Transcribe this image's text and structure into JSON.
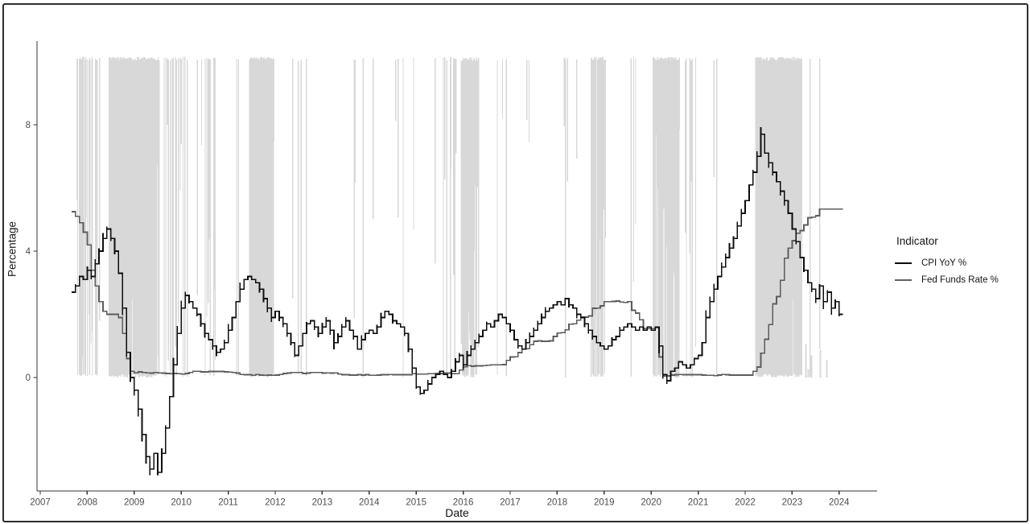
{
  "figure": {
    "background": "#ffffff",
    "border_color": "#2e2e2e"
  },
  "chart_data": {
    "type": "line",
    "xlabel": "Date",
    "ylabel": "Percentage",
    "x_ticks": [
      2007,
      2008,
      2009,
      2010,
      2011,
      2012,
      2013,
      2014,
      2015,
      2016,
      2017,
      2018,
      2019,
      2020,
      2021,
      2022,
      2023,
      2024
    ],
    "y_ticks": [
      0,
      4,
      8
    ],
    "ylim": [
      -3.2,
      10.2
    ],
    "xlim": [
      2006.93,
      2024.8
    ],
    "grid": "off",
    "tick_label_color": "#4d4d4d",
    "axis_line_color": "#333333",
    "legend": {
      "title": "Indicator",
      "position": "right",
      "entries": [
        {
          "label": "CPI YoY %",
          "color": "#0d0d0d"
        },
        {
          "label": "Fed Funds Rate %",
          "color": "#616161"
        }
      ]
    },
    "start_year": 2007,
    "start_month": 9,
    "series": [
      {
        "name": "Fed Funds Rate %",
        "color": "#5c5c5c",
        "width": 1.7,
        "overshoot": false,
        "values": [
          5.25,
          5.1,
          4.9,
          4.6,
          4.2,
          3.4,
          2.9,
          2.4,
          2.1,
          2.0,
          2.0,
          2.0,
          1.9,
          1.4,
          0.6,
          0.2,
          0.15,
          0.18,
          0.16,
          0.15,
          0.14,
          0.16,
          0.15,
          0.14,
          0.13,
          0.12,
          0.13,
          0.12,
          0.11,
          0.13,
          0.16,
          0.2,
          0.2,
          0.18,
          0.18,
          0.19,
          0.19,
          0.19,
          0.19,
          0.18,
          0.17,
          0.16,
          0.14,
          0.1,
          0.09,
          0.09,
          0.07,
          0.1,
          0.08,
          0.07,
          0.08,
          0.07,
          0.08,
          0.1,
          0.13,
          0.14,
          0.16,
          0.16,
          0.16,
          0.13,
          0.14,
          0.16,
          0.16,
          0.16,
          0.14,
          0.15,
          0.14,
          0.15,
          0.11,
          0.09,
          0.09,
          0.08,
          0.08,
          0.09,
          0.08,
          0.09,
          0.07,
          0.07,
          0.08,
          0.09,
          0.09,
          0.1,
          0.09,
          0.09,
          0.09,
          0.09,
          0.09,
          0.12,
          0.11,
          0.11,
          0.11,
          0.12,
          0.12,
          0.13,
          0.13,
          0.14,
          0.14,
          0.12,
          0.12,
          0.24,
          0.34,
          0.38,
          0.36,
          0.37,
          0.37,
          0.38,
          0.39,
          0.4,
          0.4,
          0.4,
          0.41,
          0.54,
          0.65,
          0.66,
          0.79,
          0.9,
          0.91,
          1.04,
          1.15,
          1.16,
          1.15,
          1.15,
          1.16,
          1.3,
          1.41,
          1.42,
          1.51,
          1.69,
          1.7,
          1.82,
          1.91,
          1.91,
          1.95,
          2.19,
          2.2,
          2.27,
          2.4,
          2.4,
          2.41,
          2.42,
          2.39,
          2.38,
          2.4,
          2.13,
          2.04,
          1.83,
          1.55,
          1.55,
          1.55,
          1.58,
          0.65,
          0.05,
          0.05,
          0.08,
          0.09,
          0.1,
          0.09,
          0.09,
          0.09,
          0.09,
          0.09,
          0.08,
          0.07,
          0.07,
          0.06,
          0.08,
          0.1,
          0.09,
          0.08,
          0.08,
          0.08,
          0.08,
          0.08,
          0.08,
          0.2,
          0.33,
          0.77,
          1.21,
          1.68,
          2.33,
          2.56,
          3.08,
          3.78,
          4.1,
          4.33,
          4.57,
          4.65,
          4.83,
          5.06,
          5.08,
          5.12,
          5.33,
          5.33,
          5.33,
          5.33,
          5.33,
          5.33
        ]
      },
      {
        "name": "CPI YoY %",
        "color": "#0d0d0d",
        "width": 1.7,
        "overshoot": true,
        "values": [
          2.7,
          2.9,
          3.2,
          3.1,
          3.4,
          3.2,
          3.6,
          4.0,
          4.4,
          4.7,
          4.4,
          4.0,
          3.3,
          2.2,
          0.8,
          0.0,
          -0.4,
          -1.0,
          -1.8,
          -2.5,
          -2.9,
          -2.4,
          -3.0,
          -2.4,
          -1.6,
          -0.6,
          0.4,
          1.4,
          2.2,
          2.6,
          2.4,
          2.2,
          2.0,
          1.7,
          1.4,
          1.2,
          1.0,
          0.8,
          0.9,
          1.1,
          1.5,
          1.9,
          2.4,
          2.8,
          3.1,
          3.2,
          3.1,
          3.0,
          2.8,
          2.5,
          2.2,
          1.9,
          2.1,
          1.9,
          1.7,
          1.4,
          1.1,
          0.7,
          1.0,
          1.4,
          1.7,
          1.8,
          1.6,
          1.4,
          1.6,
          1.8,
          1.5,
          1.1,
          1.3,
          1.6,
          1.8,
          1.5,
          1.3,
          0.9,
          1.2,
          1.4,
          1.5,
          1.4,
          1.6,
          1.9,
          2.1,
          2.0,
          1.8,
          1.7,
          1.6,
          1.4,
          0.9,
          0.3,
          -0.3,
          -0.5,
          -0.4,
          -0.2,
          0.0,
          0.1,
          0.2,
          0.1,
          0.0,
          0.2,
          0.5,
          0.7,
          0.4,
          0.7,
          0.9,
          1.1,
          1.3,
          1.5,
          1.7,
          1.6,
          1.8,
          2.0,
          1.9,
          1.7,
          1.5,
          1.2,
          1.0,
          0.9,
          1.1,
          1.3,
          1.5,
          1.7,
          1.9,
          2.1,
          2.2,
          2.3,
          2.4,
          2.3,
          2.5,
          2.3,
          2.2,
          2.0,
          1.9,
          1.7,
          1.5,
          1.3,
          1.1,
          1.0,
          0.9,
          1.0,
          1.2,
          1.3,
          1.5,
          1.6,
          1.7,
          1.6,
          1.5,
          1.6,
          1.5,
          1.6,
          1.5,
          1.6,
          1.0,
          0.1,
          -0.1,
          0.2,
          0.3,
          0.5,
          0.4,
          0.3,
          0.4,
          0.6,
          0.7,
          1.1,
          1.9,
          2.4,
          2.8,
          3.2,
          3.5,
          3.8,
          4.1,
          4.4,
          4.8,
          5.2,
          5.6,
          6.1,
          6.5,
          7.0,
          7.7,
          7.1,
          6.8,
          6.5,
          6.2,
          5.9,
          5.6,
          5.2,
          4.7,
          4.3,
          3.8,
          3.4,
          3.0,
          2.8,
          2.5,
          2.9,
          2.4,
          2.7,
          2.2,
          2.4,
          2.0
        ]
      }
    ],
    "shading": {
      "color": "#d8d8d8",
      "top_value": 10.15,
      "seed": 42,
      "bar_width": 1.3,
      "depth_range": [
        0.4,
        8.2
      ],
      "clusters": [
        {
          "a": 2007.78,
          "b": 2008.12,
          "n": 16,
          "full": 0.45
        },
        {
          "a": 2008.13,
          "b": 2008.27,
          "n": 6,
          "full": 0.55
        },
        {
          "a": 2008.46,
          "b": 2009.53,
          "n": 110,
          "full": 0.9
        },
        {
          "a": 2009.63,
          "b": 2010.13,
          "n": 16,
          "full": 0.5
        },
        {
          "a": 2010.28,
          "b": 2010.73,
          "n": 12,
          "full": 0.45
        },
        {
          "a": 2011.15,
          "b": 2011.22,
          "n": 3,
          "full": 0.4
        },
        {
          "a": 2011.45,
          "b": 2011.97,
          "n": 55,
          "full": 0.88
        },
        {
          "a": 2012.33,
          "b": 2012.78,
          "n": 4,
          "full": 0.35
        },
        {
          "a": 2012.95,
          "b": 2015.45,
          "n": 9,
          "full": 0.3
        },
        {
          "a": 2015.52,
          "b": 2015.86,
          "n": 10,
          "full": 0.5
        },
        {
          "a": 2015.96,
          "b": 2016.32,
          "n": 26,
          "full": 0.6
        },
        {
          "a": 2016.5,
          "b": 2017.62,
          "n": 5,
          "full": 0.35
        },
        {
          "a": 2018.1,
          "b": 2018.45,
          "n": 5,
          "full": 0.45
        },
        {
          "a": 2018.72,
          "b": 2019.03,
          "n": 20,
          "full": 0.78
        },
        {
          "a": 2019.5,
          "b": 2019.78,
          "n": 4,
          "full": 0.35
        },
        {
          "a": 2020.04,
          "b": 2020.6,
          "n": 42,
          "full": 0.86
        },
        {
          "a": 2020.68,
          "b": 2020.95,
          "n": 8,
          "full": 0.3
        },
        {
          "a": 2021.32,
          "b": 2021.46,
          "n": 2,
          "full": 0.3
        },
        {
          "a": 2022.22,
          "b": 2023.2,
          "n": 90,
          "full": 0.92
        },
        {
          "a": 2023.37,
          "b": 2023.4,
          "n": 1,
          "full": 1.0
        },
        {
          "a": 2023.58,
          "b": 2023.63,
          "n": 1,
          "full": 0.0,
          "dmin": 0.5,
          "dmax": 0.9
        }
      ],
      "bottom_spikes": [
        {
          "a": 2020.45,
          "b": 2020.63,
          "n": 3,
          "hmax": 0.7
        },
        {
          "a": 2023.22,
          "b": 2023.75,
          "n": 7,
          "hmax": 1.1
        }
      ]
    }
  }
}
